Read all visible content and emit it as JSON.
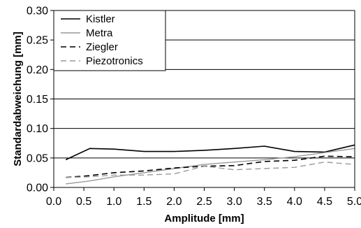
{
  "chart_data": {
    "type": "line",
    "xlabel": "Amplitude [mm]",
    "ylabel": "Standardabweichung [mm]",
    "xlim": [
      0,
      5
    ],
    "ylim": [
      0,
      0.3
    ],
    "x_ticks": [
      "0.0",
      "0.5",
      "1.0",
      "1.5",
      "2.0",
      "2.5",
      "3.0",
      "3.5",
      "4.0",
      "4.5",
      "5.0"
    ],
    "y_ticks": [
      "0.00",
      "0.05",
      "0.10",
      "0.15",
      "0.20",
      "0.25",
      "0.30"
    ],
    "grid": "horizontal",
    "legend_position": "top-left",
    "x": [
      0.2,
      0.6,
      1.0,
      1.5,
      2.0,
      2.5,
      3.0,
      3.5,
      4.0,
      4.5,
      5.0
    ],
    "series": [
      {
        "name": "Kistler",
        "color": "#000000",
        "dash": "solid",
        "values": [
          0.047,
          0.066,
          0.065,
          0.061,
          0.061,
          0.063,
          0.066,
          0.07,
          0.061,
          0.06,
          0.072
        ]
      },
      {
        "name": "Metra",
        "color": "#999999",
        "dash": "solid",
        "values": [
          0.006,
          0.011,
          0.018,
          0.025,
          0.032,
          0.039,
          0.043,
          0.047,
          0.052,
          0.059,
          0.066
        ]
      },
      {
        "name": "Ziegler",
        "color": "#000000",
        "dash": "dashed",
        "values": [
          0.017,
          0.02,
          0.025,
          0.028,
          0.033,
          0.036,
          0.037,
          0.044,
          0.046,
          0.053,
          0.052
        ]
      },
      {
        "name": "Piezotronics",
        "color": "#999999",
        "dash": "dashed",
        "values": [
          0.017,
          0.018,
          0.021,
          0.021,
          0.023,
          0.036,
          0.03,
          0.032,
          0.034,
          0.043,
          0.039
        ]
      }
    ]
  }
}
